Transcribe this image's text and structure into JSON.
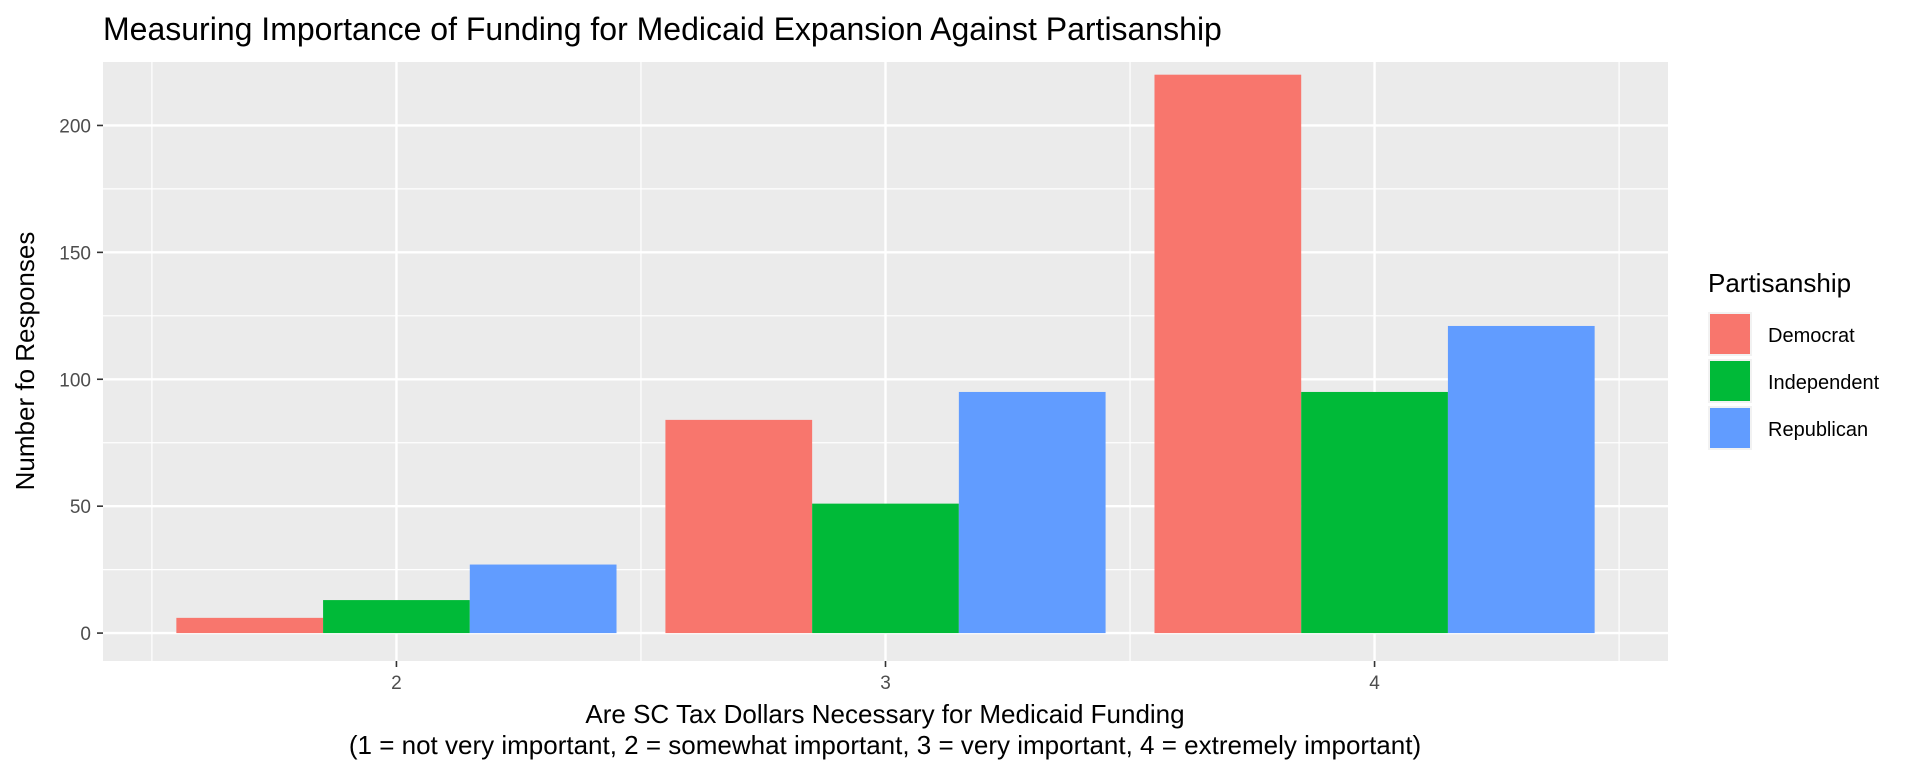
{
  "chart_data": {
    "type": "bar",
    "title": "Measuring Importance of Funding for Medicaid Expansion Against Partisanship",
    "xlabel": "Are SC Tax Dollars Necessary for Medicaid Funding",
    "xlabel_line2": "(1 = not very important, 2 = somewhat important, 3 = very important, 4 = extremely important)",
    "ylabel": "Number fo Responses",
    "categories": [
      "2",
      "3",
      "4"
    ],
    "ylim": [
      -11,
      225
    ],
    "yticks": [
      0,
      50,
      100,
      150,
      200
    ],
    "grid": true,
    "legend_title": "Partisanship",
    "legend_position": "right",
    "series": [
      {
        "name": "Democrat",
        "color": "#F8766D",
        "values": [
          6,
          84,
          220
        ]
      },
      {
        "name": "Independent",
        "color": "#00BA38",
        "values": [
          13,
          51,
          95
        ]
      },
      {
        "name": "Republican",
        "color": "#619CFF",
        "values": [
          27,
          95,
          121
        ]
      }
    ],
    "panel_background": "#EBEBEB"
  }
}
